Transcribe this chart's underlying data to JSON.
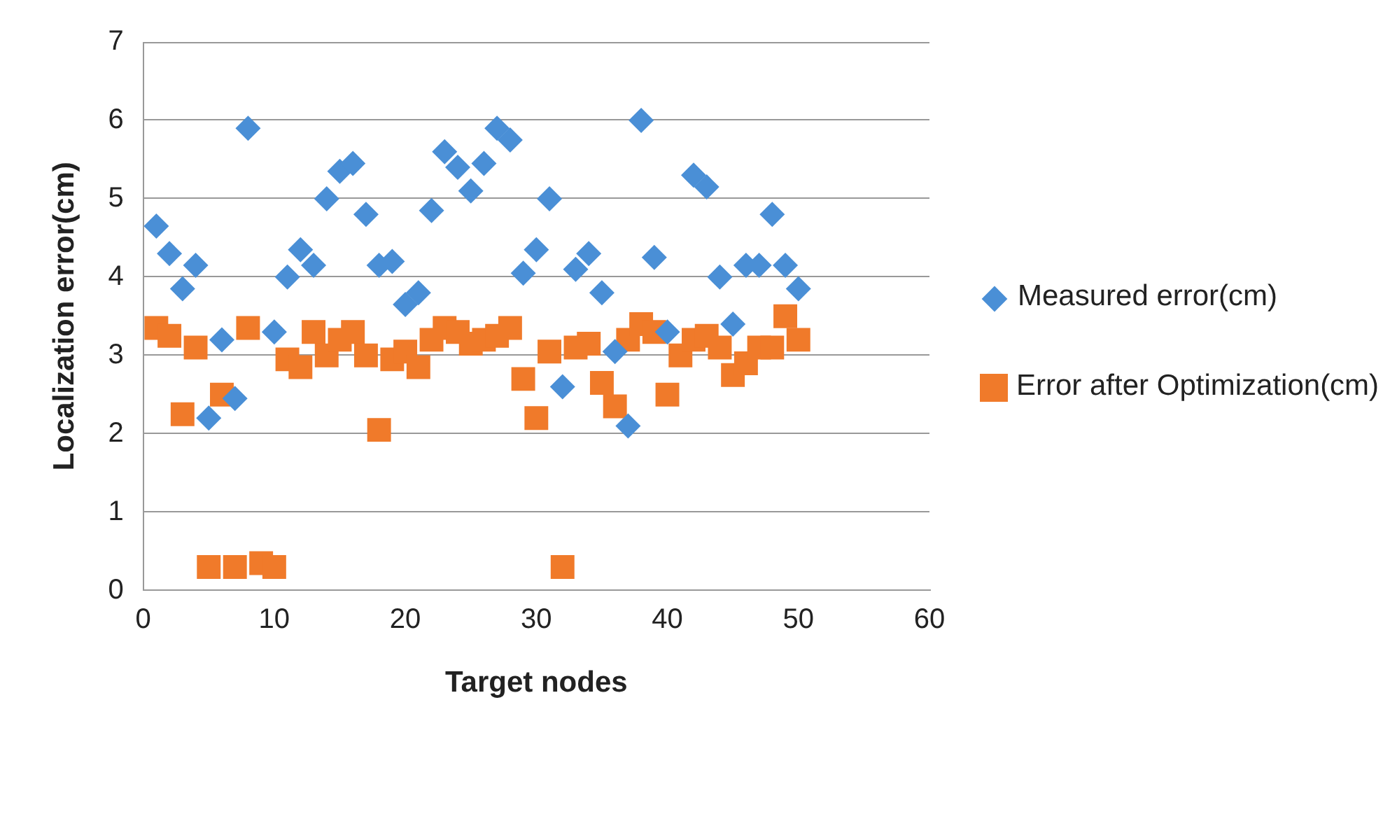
{
  "chart_data": {
    "type": "scatter",
    "xlabel": "Target nodes",
    "ylabel": "Localization error(cm)",
    "x": [
      1,
      2,
      3,
      4,
      5,
      6,
      7,
      8,
      9,
      10,
      11,
      12,
      13,
      14,
      15,
      16,
      17,
      18,
      19,
      20,
      21,
      22,
      23,
      24,
      25,
      26,
      27,
      28,
      29,
      30,
      31,
      32,
      33,
      34,
      35,
      36,
      37,
      38,
      39,
      40,
      41,
      42,
      43,
      44,
      45,
      46,
      47,
      48,
      49,
      50
    ],
    "series": [
      {
        "name": "Measured error(cm)",
        "color": "#4a8fd6",
        "marker": "diamond",
        "values": [
          4.65,
          4.3,
          3.85,
          4.15,
          2.2,
          3.2,
          2.45,
          5.9,
          null,
          3.3,
          4.0,
          4.35,
          4.15,
          5.0,
          5.35,
          5.45,
          4.8,
          4.15,
          4.2,
          3.65,
          3.8,
          4.85,
          5.6,
          5.4,
          5.1,
          5.45,
          5.9,
          5.75,
          4.05,
          4.35,
          5.0,
          2.6,
          4.1,
          4.3,
          3.8,
          3.05,
          2.1,
          6.0,
          4.25,
          3.3,
          null,
          5.3,
          5.15,
          4.0,
          3.4,
          4.15,
          4.15,
          4.8,
          4.15,
          3.85
        ]
      },
      {
        "name": "Error after Optimization(cm)",
        "color": "#f07a2a",
        "marker": "square",
        "values": [
          3.35,
          3.25,
          2.25,
          3.1,
          0.3,
          2.5,
          0.3,
          3.35,
          0.35,
          0.3,
          2.95,
          2.85,
          3.3,
          3.0,
          3.2,
          3.3,
          3.0,
          2.05,
          2.95,
          3.05,
          2.85,
          3.2,
          3.35,
          3.3,
          3.15,
          3.2,
          3.25,
          3.35,
          2.7,
          2.2,
          3.05,
          0.3,
          3.1,
          3.15,
          2.65,
          2.35,
          3.2,
          3.4,
          3.3,
          2.5,
          3.0,
          3.2,
          3.25,
          3.1,
          2.75,
          2.9,
          3.1,
          3.1,
          3.5,
          3.2
        ]
      }
    ],
    "xlim": [
      0,
      60
    ],
    "xticks": [
      0,
      10,
      20,
      30,
      40,
      50,
      60
    ],
    "ylim": [
      0,
      7
    ],
    "yticks": [
      0,
      1,
      2,
      3,
      4,
      5,
      6,
      7
    ],
    "grid": "y",
    "legend": "right"
  }
}
